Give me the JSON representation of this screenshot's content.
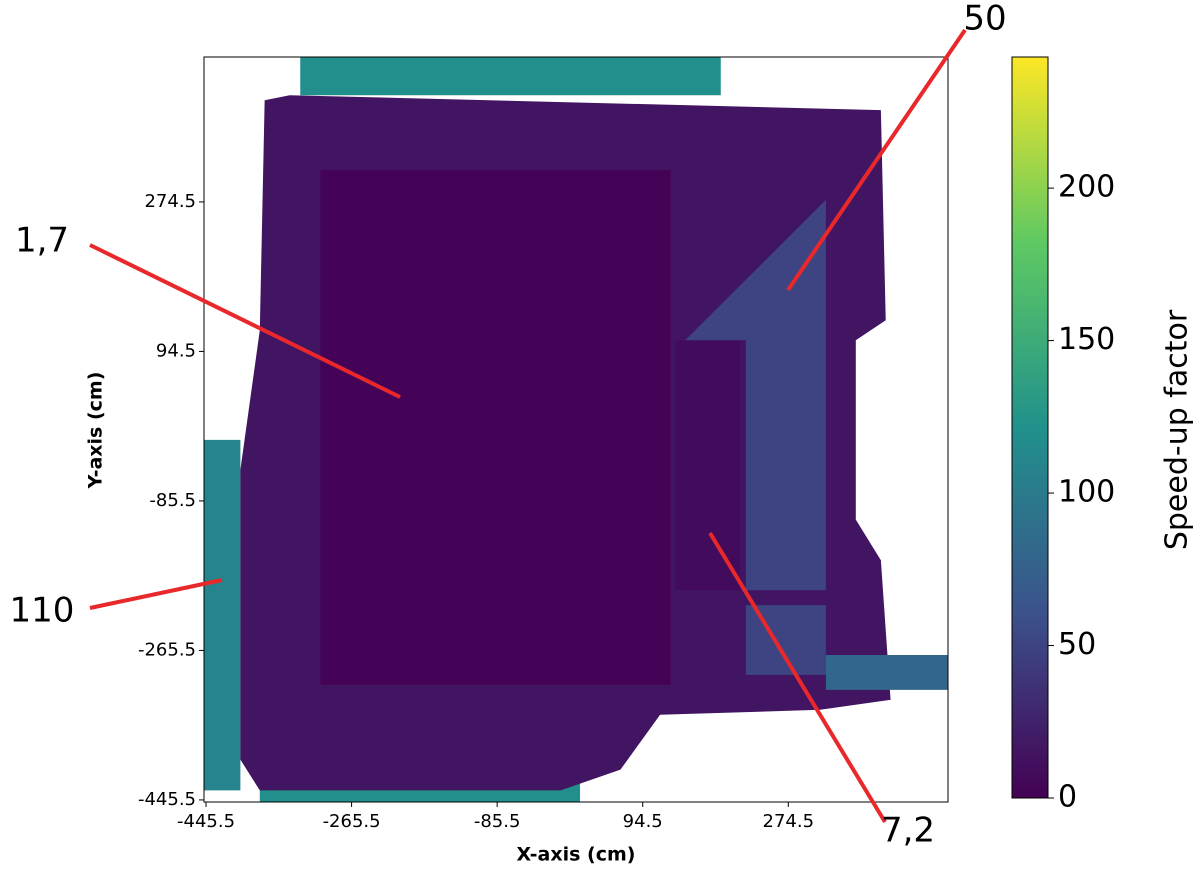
{
  "chart_data": {
    "type": "heatmap",
    "xlabel": "X-axis (cm)",
    "ylabel": "Y-axis (cm)",
    "xlim": [
      -448,
      472
    ],
    "ylim": [
      -448,
      449
    ],
    "xticks": [
      -445.5,
      -265.5,
      -85.5,
      94.5,
      274.5
    ],
    "yticks": [
      -445.5,
      -265.5,
      -85.5,
      94.5,
      274.5
    ],
    "colorbar_label": "Speed-up factor",
    "clim": [
      0,
      243
    ],
    "cticks": [
      0,
      50,
      100,
      150,
      200
    ],
    "colormap": "viridis",
    "regions": [
      {
        "value": 120,
        "x": [
          -329,
          191,
          191,
          -329
        ],
        "y": [
          449,
          449,
          403,
          403
        ]
      },
      {
        "value": 120,
        "x": [
          -379,
          17,
          17,
          -379
        ],
        "y": [
          -403,
          -403,
          -448,
          -448
        ]
      },
      {
        "value": 110,
        "x": [
          -448,
          -403,
          -403,
          -448
        ],
        "y": [
          -12,
          -12,
          -434,
          -434
        ]
      },
      {
        "value": 15,
        "x": [
          -373,
          -342,
          389,
          395,
          358,
          358,
          389,
          401,
          314,
          116,
          67,
          -7,
          -379,
          -403,
          -403,
          -379
        ],
        "y": [
          397,
          403,
          385,
          132,
          108,
          -108,
          -157,
          -325,
          -337,
          -343,
          -409,
          -434,
          -434,
          -397,
          -48,
          120
        ]
      },
      {
        "value": 1.7,
        "x": [
          -304,
          129,
          129,
          -304
        ],
        "y": [
          313,
          313,
          -307,
          -307
        ]
      },
      {
        "value": 7.2,
        "x": [
          135,
          215,
          215,
          135
        ],
        "y": [
          108,
          108,
          -193,
          -193
        ]
      },
      {
        "value": 50,
        "x": [
          147,
          321,
          321,
          222,
          222
        ],
        "y": [
          108,
          277,
          -193,
          -193,
          108
        ]
      },
      {
        "value": 50,
        "x": [
          222,
          321,
          321,
          222
        ],
        "y": [
          -211,
          -211,
          -295,
          -295
        ]
      },
      {
        "value": 80,
        "x": [
          321,
          472,
          472,
          321
        ],
        "y": [
          -271,
          -271,
          -313,
          -313
        ]
      }
    ],
    "annotations": [
      "1,7",
      "50",
      "7,2",
      "110"
    ]
  }
}
